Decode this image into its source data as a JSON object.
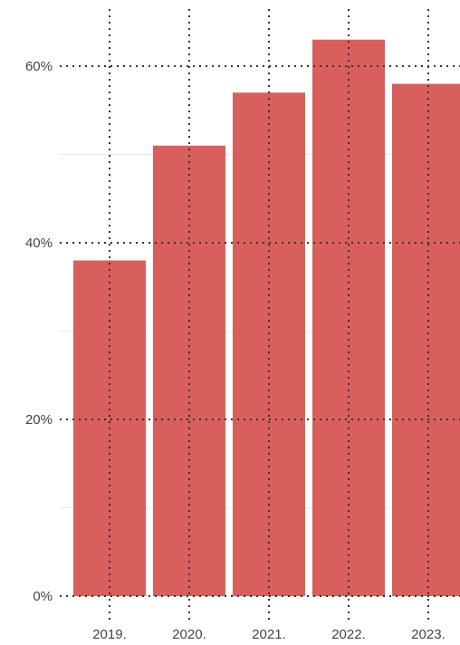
{
  "chart_data": {
    "type": "bar",
    "title": "",
    "xlabel": "",
    "ylabel": "",
    "categories": [
      "2019.",
      "2020.",
      "2021.",
      "2022.",
      "2023."
    ],
    "values": [
      38,
      51,
      57,
      63,
      58
    ],
    "unit": "%",
    "ylim": [
      0,
      65
    ],
    "yticks": [
      0,
      20,
      40,
      60
    ],
    "ytick_labels": [
      "0%",
      "20%",
      "40%",
      "60%"
    ],
    "minor_gridlines": [
      10,
      30,
      50
    ],
    "bar_color": "#d95f5c",
    "gridline_color": "#333333",
    "minor_gridline_color": "#ececec",
    "legend": "none"
  }
}
